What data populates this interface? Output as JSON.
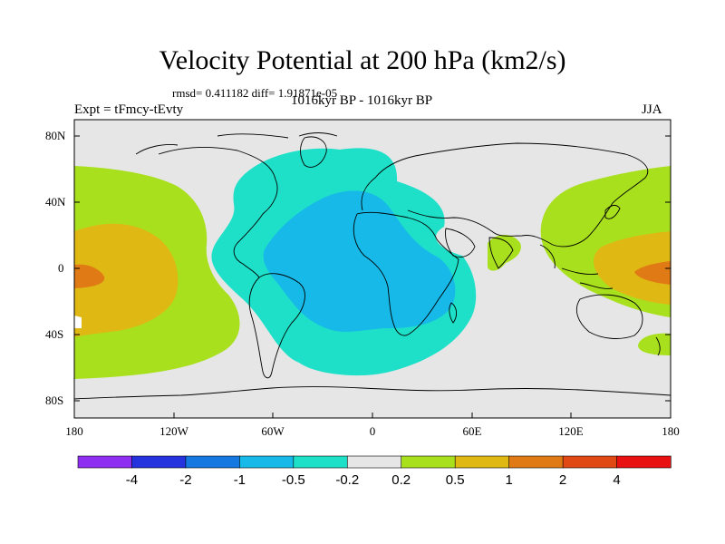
{
  "title": "Velocity Potential at 200 hPa (km2/s)",
  "stats": "rmsd= 0.411182  diff= 1.91871e-05",
  "left_label": "Expt = tFmcy-tEvty",
  "center_label": "1016kyr BP - 1016kyr BP",
  "right_label": "JJA",
  "x_ticks": [
    "180",
    "120W",
    "60W",
    "0",
    "60E",
    "120E",
    "180"
  ],
  "y_ticks": [
    "80N",
    "40N",
    "0",
    "40S",
    "80S"
  ],
  "colorbar": {
    "colors": [
      "#8e2ef0",
      "#2433de",
      "#1478e0",
      "#16b9e8",
      "#1ee0c8",
      "#e6e6e6",
      "#a8e01e",
      "#e0b814",
      "#e07a14",
      "#e04814",
      "#e81010"
    ],
    "labels": [
      "-4",
      "-2",
      "-1",
      "-0.5",
      "-0.2",
      "0.2",
      "0.5",
      "1",
      "2",
      "4"
    ]
  },
  "map_colors": {
    "ocean_land_bg": "#e6e6e6",
    "coast": "#000000"
  }
}
